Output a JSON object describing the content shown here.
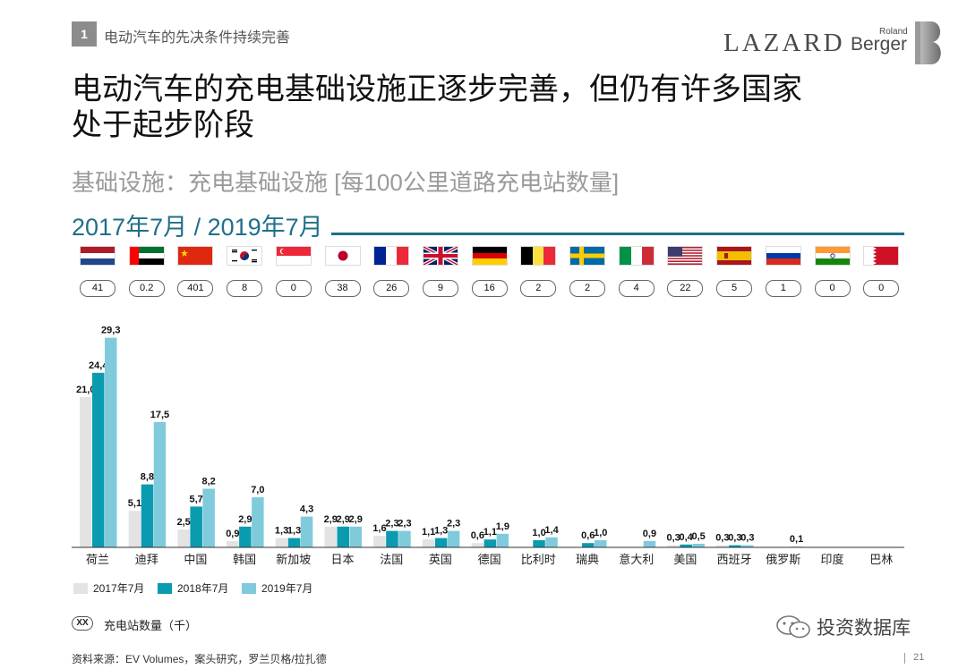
{
  "header": {
    "section_number": "1",
    "section_title": "电动汽车的先决条件持续完善",
    "logo_lazard": "LAZARD",
    "logo_rb_top": "Roland",
    "logo_rb_bottom": "Berger"
  },
  "title": {
    "line1": "电动汽车的充电基础设施正逐步完善，但仍有许多国家",
    "line2": "处于起步阶段"
  },
  "subtitle": "基础设施：充电基础设施 [每100公里道路充电站数量]",
  "date_range": "2017年7月 / 2019年7月",
  "countries": [
    {
      "name": "荷兰",
      "flag": "netherlands-flag",
      "stations": "41"
    },
    {
      "name": "迪拜",
      "flag": "uae-flag",
      "stations": "0.2"
    },
    {
      "name": "中国",
      "flag": "china-flag",
      "stations": "401"
    },
    {
      "name": "韩国",
      "flag": "south-korea-flag",
      "stations": "8"
    },
    {
      "name": "新加坡",
      "flag": "singapore-flag",
      "stations": "0"
    },
    {
      "name": "日本",
      "flag": "japan-flag",
      "stations": "38"
    },
    {
      "name": "法国",
      "flag": "france-flag",
      "stations": "26"
    },
    {
      "name": "英国",
      "flag": "uk-flag",
      "stations": "9"
    },
    {
      "name": "德国",
      "flag": "germany-flag",
      "stations": "16"
    },
    {
      "name": "比利时",
      "flag": "belgium-flag",
      "stations": "2"
    },
    {
      "name": "瑞典",
      "flag": "sweden-flag",
      "stations": "2"
    },
    {
      "name": "意大利",
      "flag": "italy-flag",
      "stations": "4"
    },
    {
      "name": "美国",
      "flag": "usa-flag",
      "stations": "22"
    },
    {
      "name": "西班牙",
      "flag": "spain-flag",
      "stations": "5"
    },
    {
      "name": "俄罗斯",
      "flag": "russia-flag",
      "stations": "1"
    },
    {
      "name": "印度",
      "flag": "india-flag",
      "stations": "0"
    },
    {
      "name": "巴林",
      "flag": "bahrain-flag",
      "stations": "0"
    }
  ],
  "chart_data": {
    "type": "bar",
    "categories": [
      "荷兰",
      "迪拜",
      "中国",
      "韩国",
      "新加坡",
      "日本",
      "法国",
      "英国",
      "德国",
      "比利时",
      "瑞典",
      "意大利",
      "美国",
      "西班牙",
      "俄罗斯",
      "印度",
      "巴林"
    ],
    "series": [
      {
        "name": "2017年7月",
        "color": "#e3e3e3",
        "values": [
          21.0,
          5.1,
          2.5,
          0.9,
          1.3,
          2.9,
          1.6,
          1.1,
          0.6,
          null,
          null,
          null,
          0.3,
          0.3,
          null,
          null,
          null
        ],
        "labels": [
          "21,0",
          "5,1",
          "2,5",
          "0,9",
          "1,3",
          "2,9",
          "1,6",
          "1,1",
          "0,6",
          "",
          "",
          "",
          "0,3",
          "0,3",
          "",
          "",
          ""
        ]
      },
      {
        "name": "2018年7月",
        "color": "#0a9bb0",
        "values": [
          24.4,
          8.8,
          5.7,
          2.9,
          1.3,
          2.9,
          2.3,
          1.3,
          1.1,
          1.0,
          0.6,
          null,
          0.4,
          0.3,
          null,
          null,
          null
        ],
        "labels": [
          "24,4",
          "8,8",
          "5,7",
          "2,9",
          "1,3",
          "2,9",
          "2,3",
          "1,3",
          "1,1",
          "1,0",
          "0,6",
          "",
          "0,4",
          "0,3",
          "",
          "",
          ""
        ]
      },
      {
        "name": "2019年7月",
        "color": "#7fcbdc",
        "values": [
          29.3,
          17.5,
          8.2,
          7.0,
          4.3,
          2.9,
          2.3,
          2.3,
          1.9,
          1.4,
          1.0,
          0.9,
          0.5,
          0.3,
          0.1,
          null,
          null
        ],
        "labels": [
          "29,3",
          "17,5",
          "8,2",
          "7,0",
          "4,3",
          "2,9",
          "2,3",
          "2,3",
          "1,9",
          "1,4",
          "1,0",
          "0,9",
          "0,5",
          "0,3",
          "0,1",
          "",
          ""
        ]
      }
    ],
    "ylim": [
      0,
      30
    ]
  },
  "legend": {
    "s2017": "2017年7月",
    "s2018": "2018年7月",
    "s2019": "2019年7月"
  },
  "note": {
    "pill": "XX",
    "text": "充电站数量（千）"
  },
  "watermark": "投资数据库",
  "source": "资料来源：EV Volumes，案头研究，罗兰贝格/拉扎德",
  "page_number": "21"
}
